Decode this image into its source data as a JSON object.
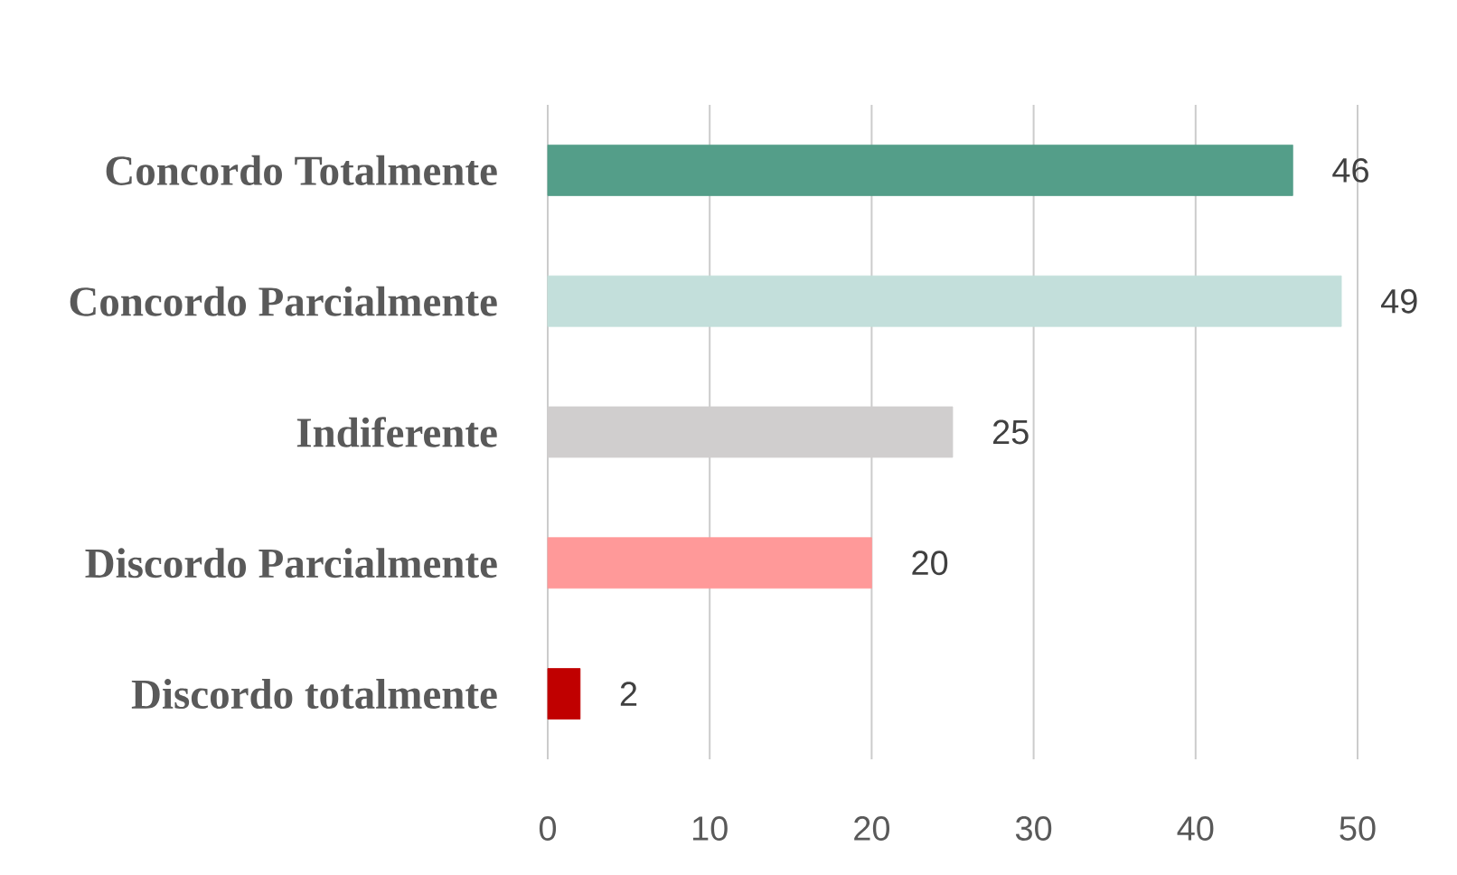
{
  "chart_data": {
    "type": "bar",
    "orientation": "horizontal",
    "categories": [
      "Concordo Totalmente",
      "Concordo Parcialmente",
      "Indiferente",
      "Discordo Parcialmente",
      "Discordo totalmente"
    ],
    "values": [
      46,
      49,
      25,
      20,
      2
    ],
    "colors": [
      "#549e89",
      "#c3dfdb",
      "#d0cece",
      "#ff9999",
      "#c00000"
    ],
    "xlim": [
      0,
      50
    ],
    "xticks": [
      0,
      10,
      20,
      30,
      40,
      50
    ],
    "grid": "x",
    "data_labels": true
  }
}
